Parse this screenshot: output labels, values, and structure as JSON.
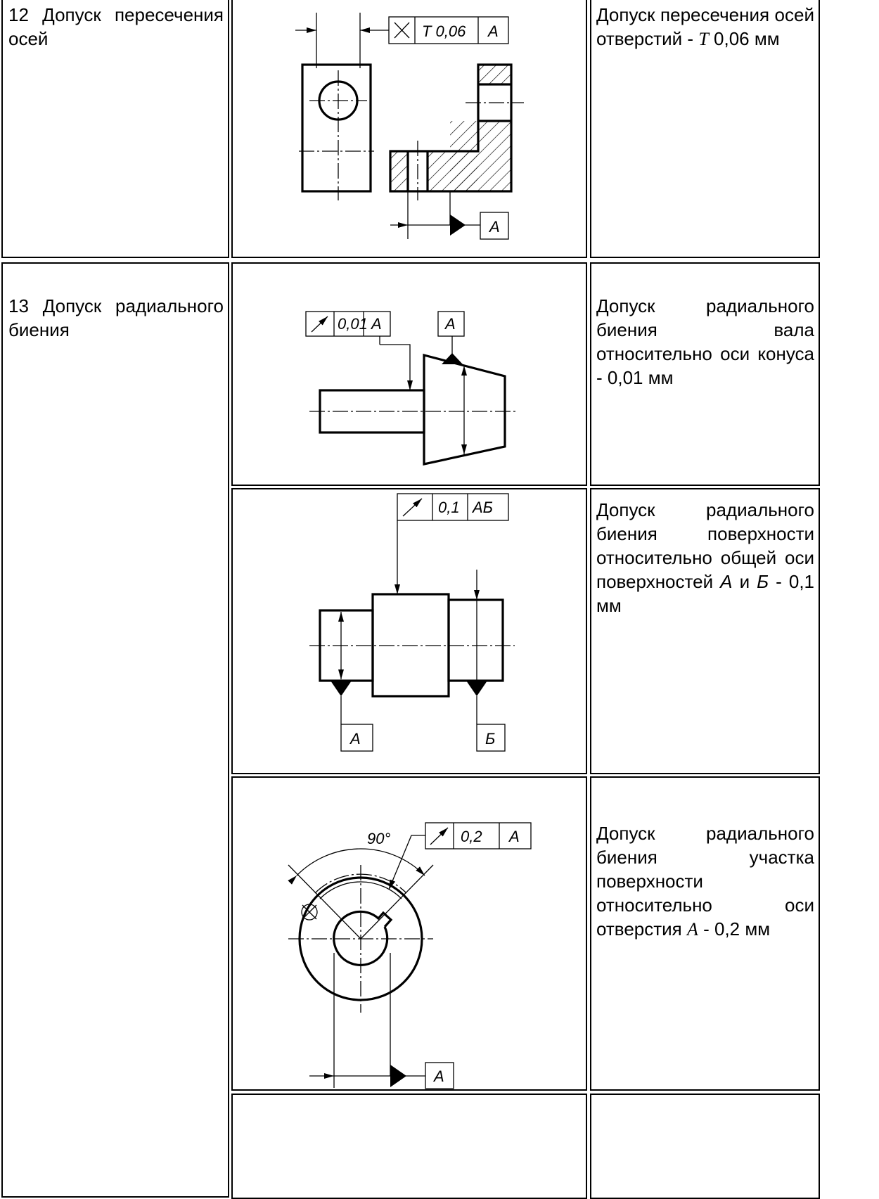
{
  "table": {
    "rows": [
      {
        "label": "12 Допуск пересечения осей",
        "description": [
          "Допуск пересечения осей отверстий - ",
          "T",
          " 0,06 мм"
        ],
        "drawing": {
          "frame": [
            "T 0,06",
            "A"
          ],
          "datum": "A"
        }
      },
      {
        "label": "13 Допуск радиального биения",
        "description": [
          "Допуск радиального биения вала относительно оси конуса - 0,01 мм"
        ],
        "drawing": {
          "frame": [
            "0,01",
            "A"
          ],
          "datum": "A"
        }
      },
      {
        "description": [
          "Допуск радиального биения поверхности относительно общей оси поверхностей ",
          "А",
          " и ",
          "Б",
          " - 0,1 мм"
        ],
        "drawing": {
          "frame": [
            "0,1",
            "АБ"
          ],
          "datums": [
            "А",
            "Б"
          ]
        }
      },
      {
        "description": [
          "Допуск радиального биения участка поверхности относительно оси отверстия ",
          "A",
          " - 0,2 мм"
        ],
        "drawing": {
          "angle": "90°",
          "frame": [
            "0,2",
            "A"
          ],
          "datum": "A"
        }
      }
    ]
  }
}
